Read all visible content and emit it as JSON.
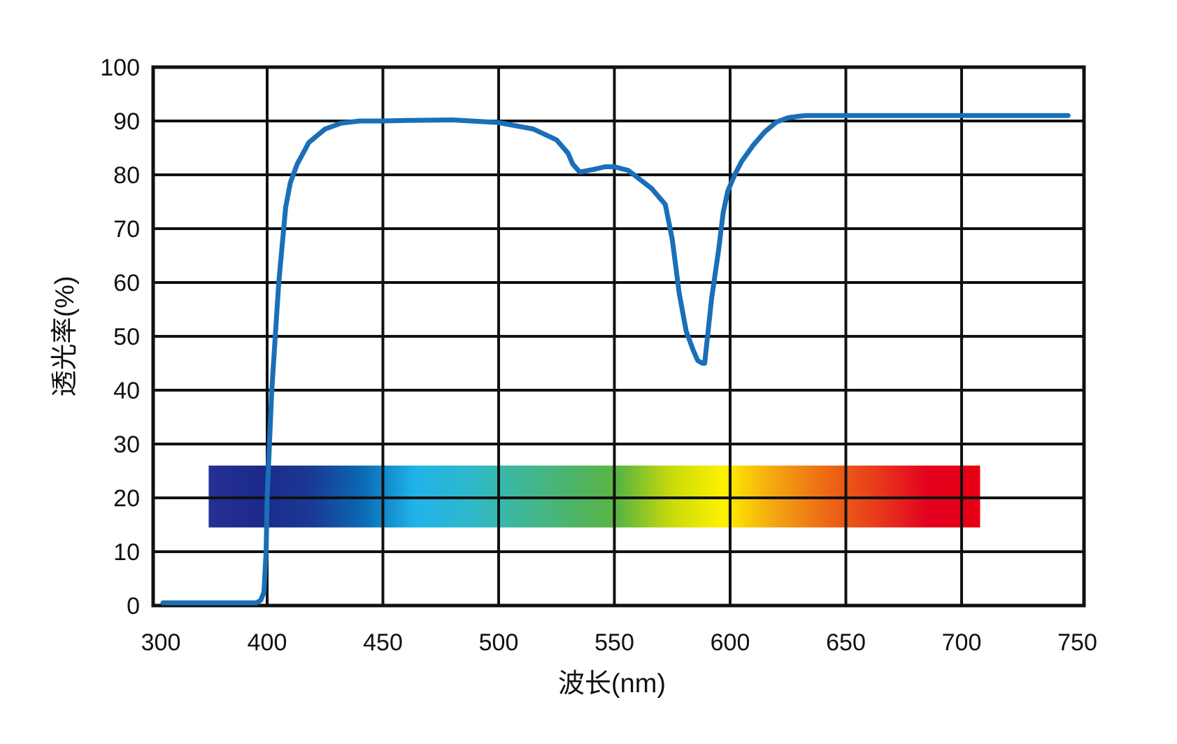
{
  "chart_data": {
    "type": "line",
    "title": "",
    "xlabel": "波长(nm)",
    "ylabel": "透光率(%)",
    "xlim": [
      300,
      750
    ],
    "ylim": [
      0,
      100
    ],
    "x_ticks": [
      300,
      400,
      450,
      500,
      550,
      600,
      650,
      700,
      750
    ],
    "x_tick_labels": [
      "300",
      "400",
      "450",
      "500",
      "550",
      "600",
      "650",
      "700",
      "750"
    ],
    "y_ticks": [
      0,
      10,
      20,
      30,
      40,
      50,
      60,
      70,
      80,
      90,
      100
    ],
    "y_tick_labels": [
      "0",
      "10",
      "20",
      "30",
      "40",
      "50",
      "60",
      "70",
      "80",
      "90",
      "100"
    ],
    "grid": true,
    "line_color": "#1a6fb8",
    "series": [
      {
        "x": [
          302,
          390,
          394,
          397,
          399,
          400,
          402,
          405,
          408,
          410,
          413,
          418,
          425,
          432,
          440,
          450,
          460,
          480,
          500,
          515,
          525,
          530,
          532,
          535,
          541,
          546,
          550,
          556,
          560,
          566,
          572,
          575,
          578,
          581,
          584,
          586,
          588,
          589,
          590,
          592,
          595,
          597,
          599,
          602,
          605,
          610,
          615,
          620,
          625,
          630,
          633,
          640,
          700,
          746
        ],
        "y": [
          0.5,
          0.5,
          1.0,
          2.5,
          10,
          20,
          40,
          60,
          74,
          78.5,
          82,
          86,
          88.5,
          89.6,
          90.0,
          90.0,
          90.1,
          90.2,
          89.7,
          88.5,
          86.5,
          84,
          82,
          80.5,
          81.0,
          81.5,
          81.5,
          80.8,
          79.5,
          77.5,
          74.5,
          68,
          58,
          51,
          47.5,
          45.5,
          45.0,
          45.0,
          49,
          57,
          66,
          73,
          77,
          80,
          82.5,
          85.5,
          88,
          89.8,
          90.6,
          90.9,
          91.0,
          91.0,
          91.0,
          91.0
        ]
      }
    ],
    "spectrum_band": {
      "x_start": 345,
      "x_end": 708,
      "y_low": 14.5,
      "y_high": 26,
      "colors": [
        "#253092",
        "#1b2a8a",
        "#1a3a94",
        "#0a6ab4",
        "#1fb3e8",
        "#2db8cf",
        "#3db79b",
        "#4cb46c",
        "#5db53f",
        "#c8db0a",
        "#fff100",
        "#f4a511",
        "#ec6a14",
        "#e83a1c",
        "#e3001f",
        "#e60012"
      ]
    }
  }
}
